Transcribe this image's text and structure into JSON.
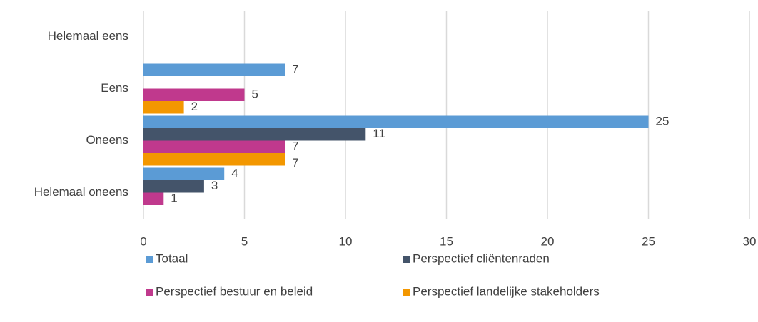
{
  "chart_data": {
    "type": "hbar",
    "categories": [
      "Helemaal eens",
      "Eens",
      "Oneens",
      "Helemaal oneens"
    ],
    "series": [
      {
        "name": "Totaal",
        "color": "#5b9bd5",
        "values": [
          null,
          7,
          25,
          4
        ]
      },
      {
        "name": "Perspectief cliëntenraden",
        "color": "#44546a",
        "values": [
          null,
          null,
          11,
          3
        ]
      },
      {
        "name": "Perspectief bestuur en beleid",
        "color": "#c0398d",
        "values": [
          null,
          5,
          7,
          1
        ]
      },
      {
        "name": "Perspectief landelijke stakeholders",
        "color": "#f39700",
        "values": [
          null,
          2,
          7,
          null
        ]
      }
    ],
    "xlim": [
      0,
      30
    ],
    "xticks": [
      0,
      5,
      10,
      15,
      20,
      25,
      30
    ],
    "grid": true,
    "legend": "bottom"
  }
}
